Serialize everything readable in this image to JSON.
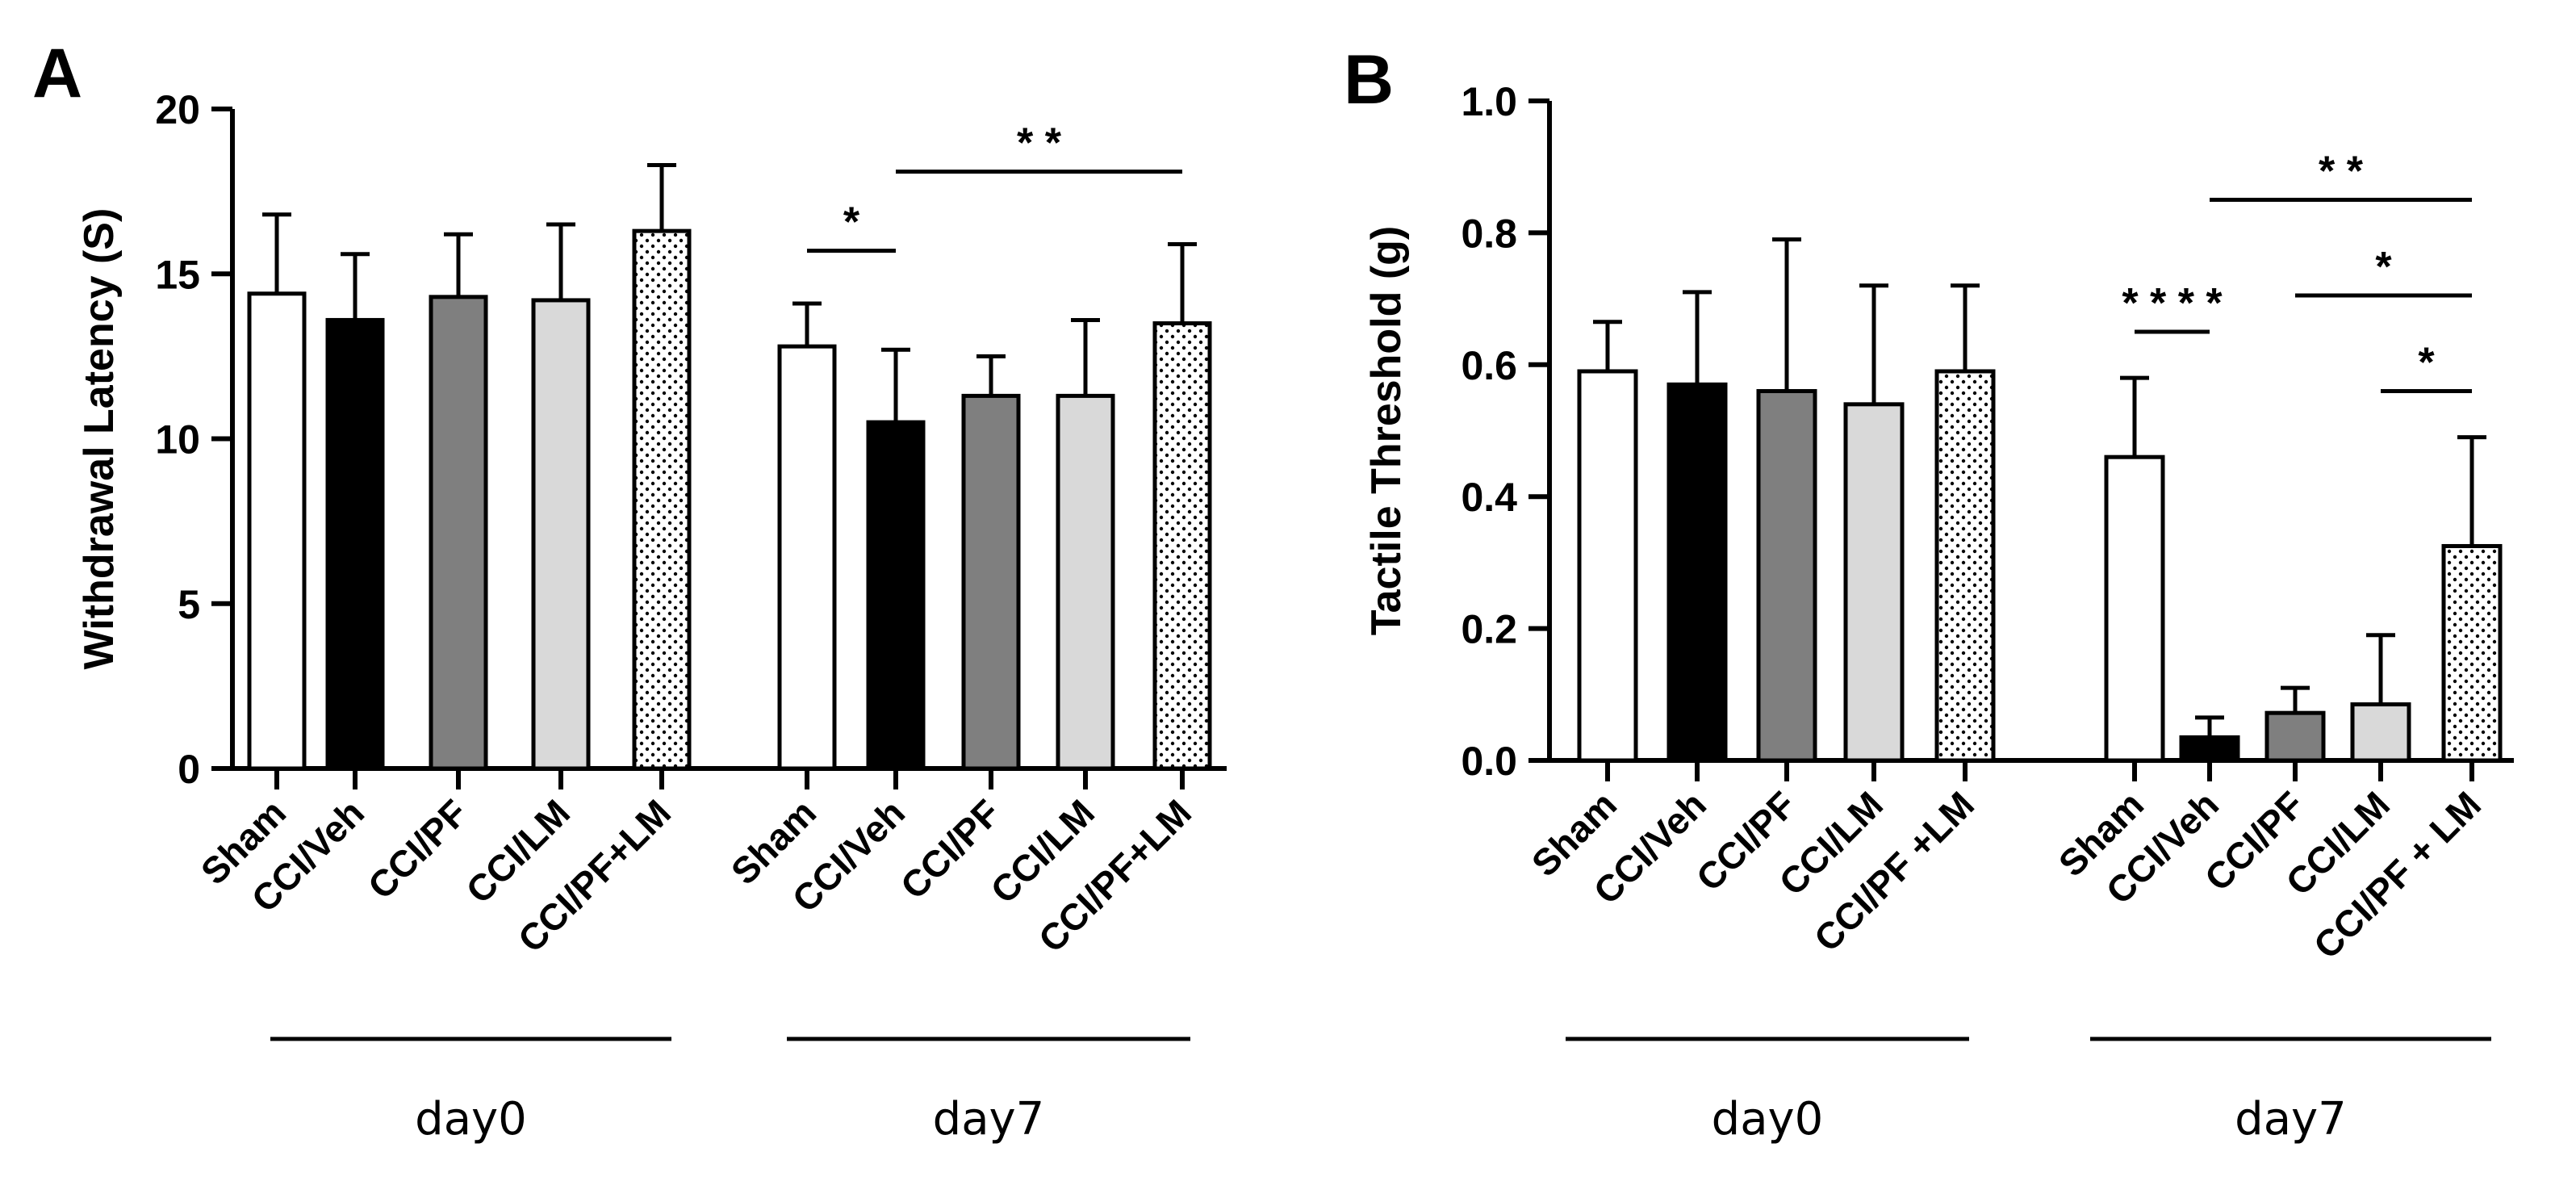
{
  "colors": {
    "Sham": "#ffffff",
    "CCI/Veh": "#000000",
    "CCI/PF": "#7f7f7f",
    "CCI/LM": "#d9d9d9",
    "CCI/PF+LM": "dotted"
  },
  "chart_data": [
    {
      "type": "bar",
      "panel": "A",
      "ylabel": "Withdrawal Latency (S)",
      "ylim": [
        0,
        20
      ],
      "yticks": [
        "0",
        "5",
        "10",
        "15",
        "20"
      ],
      "groups": [
        {
          "label": "day0",
          "categories": [
            "Sham",
            "CCI/Veh",
            "CCI/PF",
            "CCI/LM",
            "CCI/PF+LM"
          ],
          "values": [
            14.4,
            13.6,
            14.3,
            14.2,
            16.3
          ],
          "errors": [
            2.4,
            2.0,
            1.9,
            2.3,
            2.0
          ]
        },
        {
          "label": "day7",
          "categories": [
            "Sham",
            "CCI/Veh",
            "CCI/PF",
            "CCI/LM",
            "CCI/PF+LM"
          ],
          "values": [
            12.8,
            10.5,
            11.3,
            11.3,
            13.5
          ],
          "errors": [
            1.3,
            2.2,
            1.2,
            2.3,
            2.4
          ]
        }
      ],
      "annotations": [
        {
          "text": "*",
          "group": 1,
          "from": 0,
          "to": 1,
          "y": 15.7
        },
        {
          "text": "* *",
          "group": 1,
          "from": 1,
          "to": 4,
          "y": 18.1
        }
      ]
    },
    {
      "type": "bar",
      "panel": "B",
      "ylabel": "Tactile Threshold (g)",
      "ylim": [
        0,
        1.0
      ],
      "yticks": [
        "0.0",
        "0.2",
        "0.4",
        "0.6",
        "0.8",
        "1.0"
      ],
      "groups": [
        {
          "label": "day0",
          "categories": [
            "Sham",
            "CCI/Veh",
            "CCI/PF",
            "CCI/LM",
            "CCI/PF +LM"
          ],
          "values": [
            0.59,
            0.57,
            0.56,
            0.54,
            0.59
          ],
          "errors": [
            0.075,
            0.14,
            0.23,
            0.18,
            0.13
          ]
        },
        {
          "label": "day7",
          "categories": [
            "Sham",
            "CCI/Veh",
            "CCI/PF",
            "CCI/LM",
            "CCI/PF + LM"
          ],
          "values": [
            0.46,
            0.035,
            0.072,
            0.085,
            0.325
          ],
          "errors": [
            0.12,
            0.03,
            0.038,
            0.105,
            0.165
          ]
        }
      ],
      "annotations": [
        {
          "text": "* * * *",
          "group": 1,
          "from": 0,
          "to": 1,
          "y": 0.65
        },
        {
          "text": "* *",
          "group": 1,
          "from": 1,
          "to": 4,
          "y": 0.85
        },
        {
          "text": "*",
          "group": 1,
          "from": 2,
          "to": 4,
          "y": 0.705
        },
        {
          "text": "*",
          "group": 1,
          "from": 3,
          "to": 4,
          "y": 0.56
        }
      ]
    }
  ]
}
